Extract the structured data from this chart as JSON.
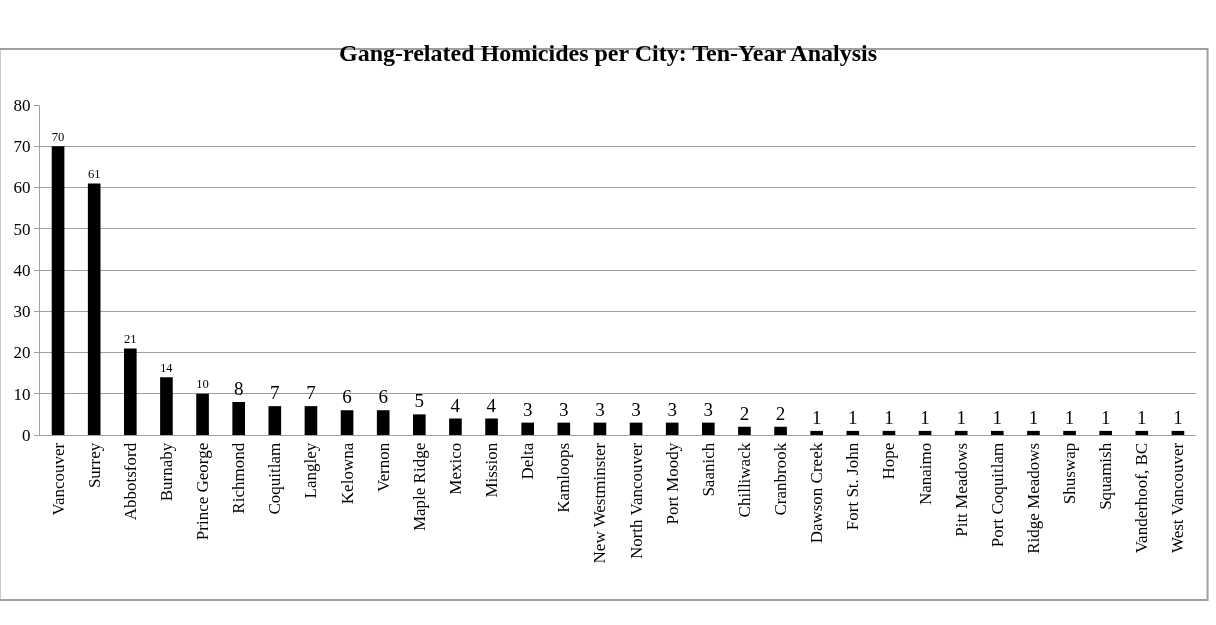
{
  "chart_data": {
    "type": "bar",
    "title": "Gang-related Homicides per City: Ten-Year Analysis",
    "categories": [
      "Vancouver",
      "Surrey",
      "Abbotsford",
      "Burnaby",
      "Prince George",
      "Richmond",
      "Coquitlam",
      "Langley",
      "Kelowna",
      "Vernon",
      "Maple Ridge",
      "Mexico",
      "Mission",
      "Delta",
      "Kamloops",
      "New Westminster",
      "North Vancouver",
      "Port Moody",
      "Saanich",
      "Chilliwack",
      "Cranbrook",
      "Dawson Creek",
      "Fort St. John",
      "Hope",
      "Nanaimo",
      "Pitt Meadows",
      "Port Coquitlam",
      "Ridge Meadows",
      "Shuswap",
      "Squamish",
      "Vanderhoof, BC",
      "West Vancouver"
    ],
    "values": [
      70,
      61,
      21,
      14,
      10,
      8,
      7,
      7,
      6,
      6,
      5,
      4,
      4,
      3,
      3,
      3,
      3,
      3,
      3,
      2,
      2,
      1,
      1,
      1,
      1,
      1,
      1,
      1,
      1,
      1,
      1,
      1
    ],
    "color": "#000000",
    "ylim": [
      0,
      80
    ],
    "yticks": [
      0,
      10,
      20,
      30,
      40,
      50,
      60,
      70,
      80
    ],
    "grid": "y",
    "data_labels": true
  }
}
